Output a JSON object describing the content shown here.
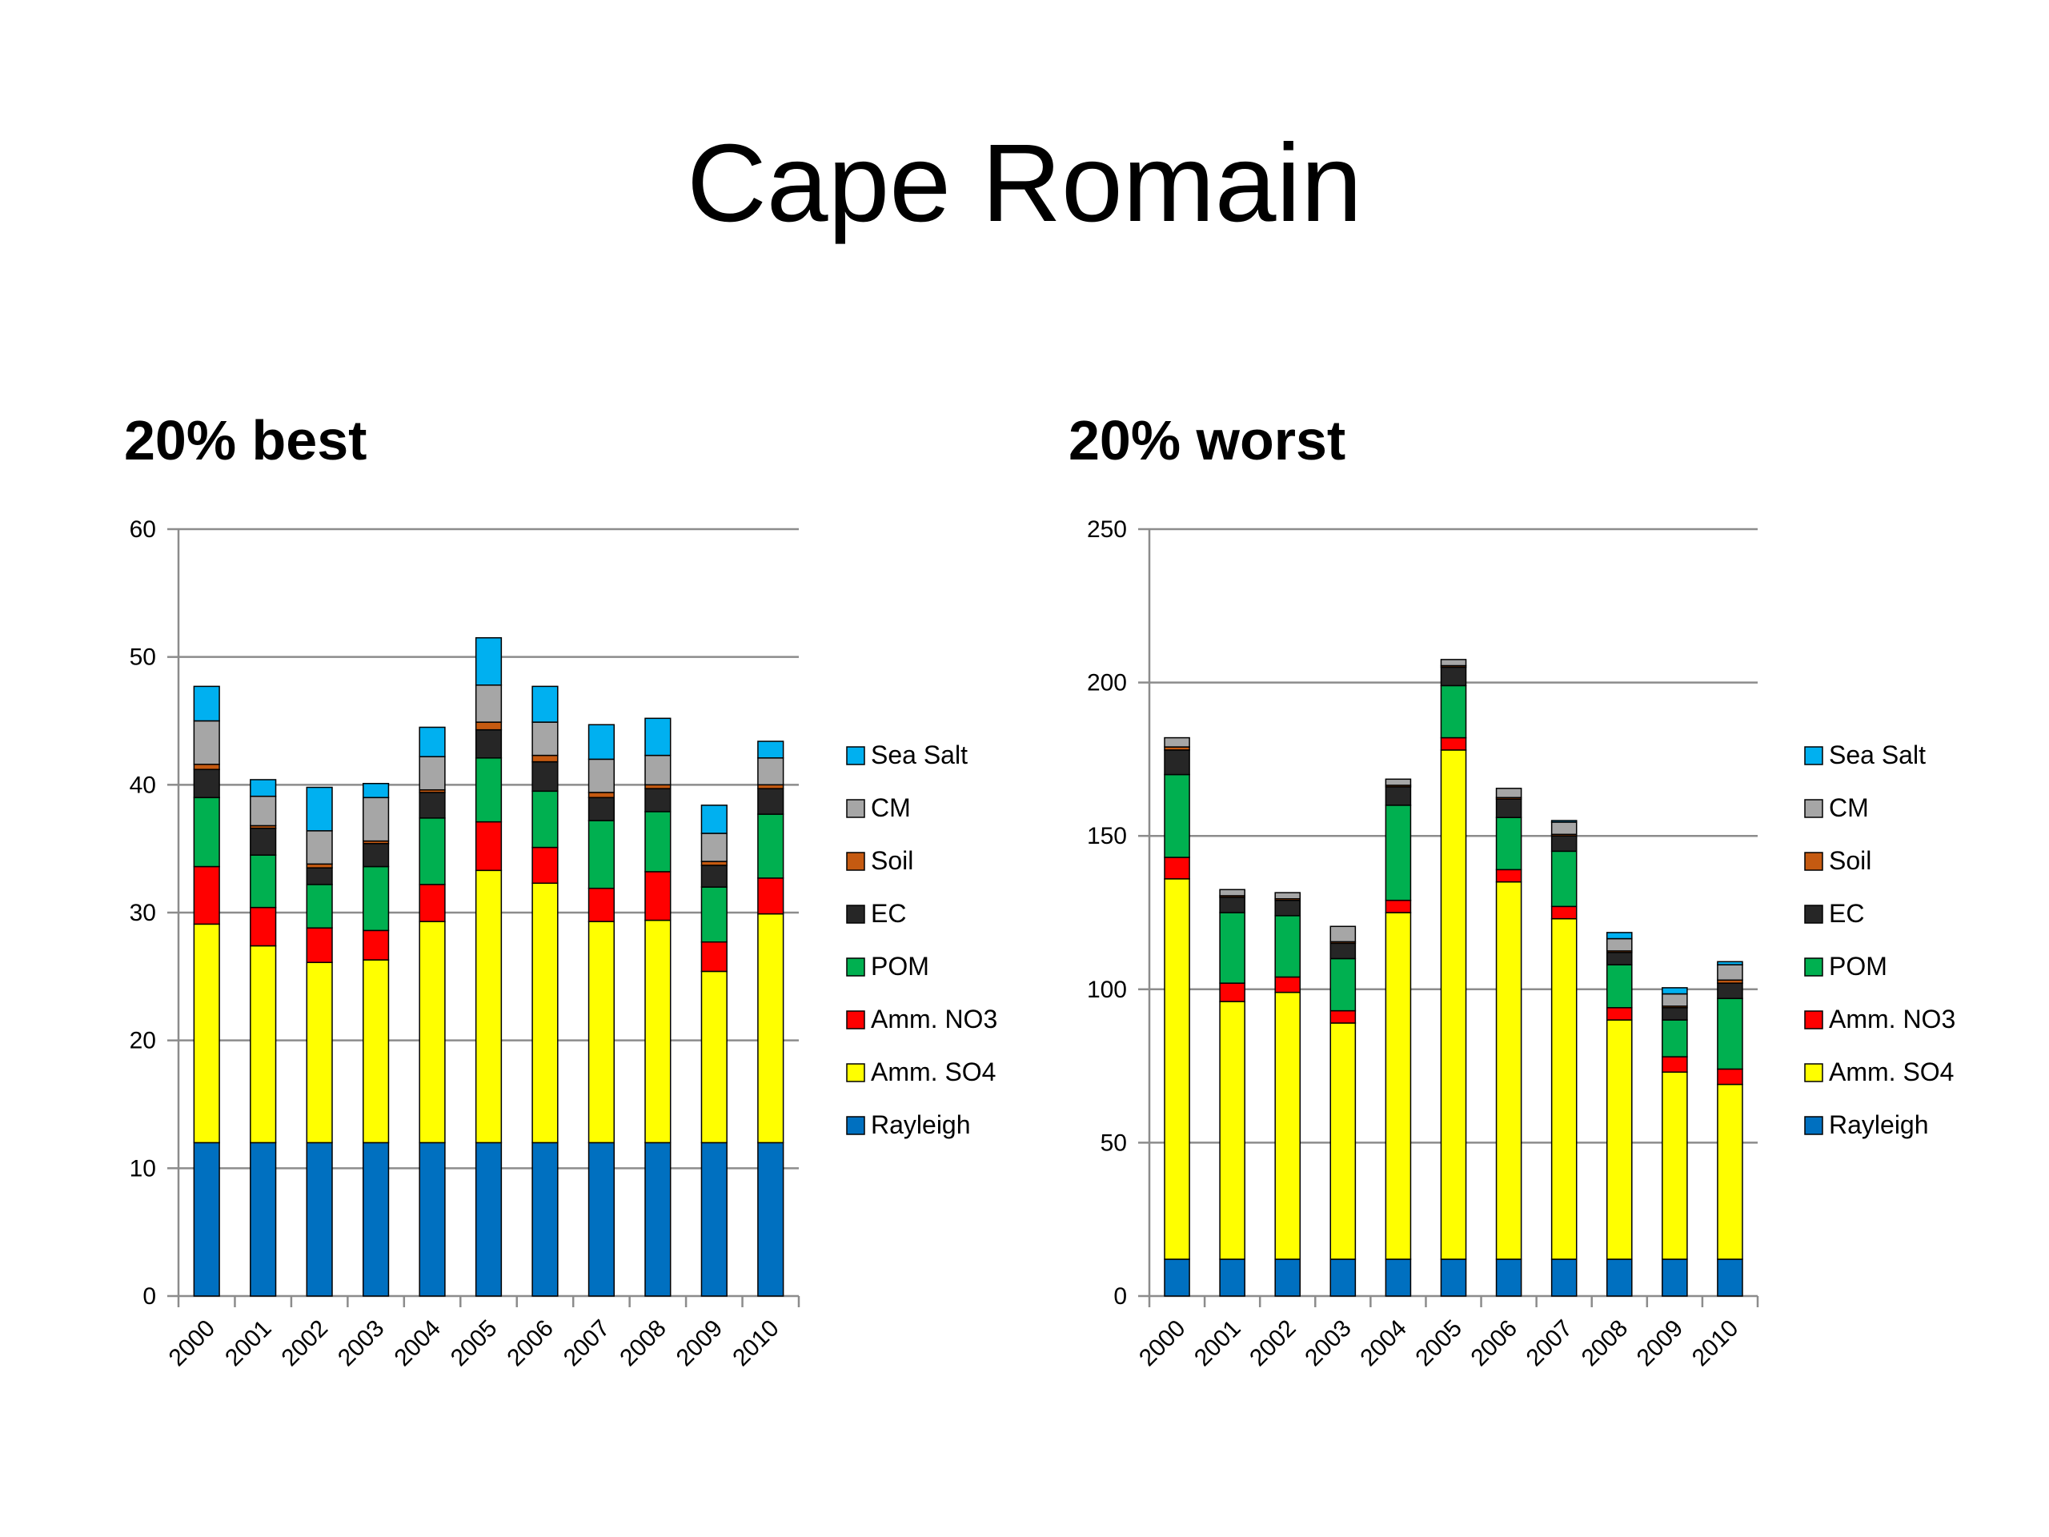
{
  "slide": {
    "title": "Cape Romain"
  },
  "colors": {
    "Rayleigh": "#0070c0",
    "Amm. SO4": "#ffff00",
    "Amm. NO3": "#ff0000",
    "POM": "#00b050",
    "EC": "#262626",
    "Soil": "#c55a11",
    "CM": "#a6a6a6",
    "Sea Salt": "#00b0f0"
  },
  "chart_data": [
    {
      "type": "bar",
      "stacked": true,
      "title": "20% best",
      "categories": [
        "2000",
        "2001",
        "2002",
        "2003",
        "2004",
        "2005",
        "2006",
        "2007",
        "2008",
        "2009",
        "2010"
      ],
      "ylim": [
        0,
        60
      ],
      "yticks": [
        0,
        10,
        20,
        30,
        40,
        50,
        60
      ],
      "grid": true,
      "legend_position": "right",
      "legend": [
        "Sea Salt",
        "CM",
        "Soil",
        "EC",
        "POM",
        "Amm. NO3",
        "Amm. SO4",
        "Rayleigh"
      ],
      "series": [
        {
          "name": "Rayleigh",
          "values": [
            12,
            12,
            12,
            12,
            12,
            12,
            12,
            12,
            12,
            12,
            12
          ]
        },
        {
          "name": "Amm. SO4",
          "values": [
            17.1,
            15.4,
            14.1,
            14.3,
            17.3,
            21.3,
            20.3,
            17.3,
            17.4,
            13.4,
            17.9
          ]
        },
        {
          "name": "Amm. NO3",
          "values": [
            4.5,
            3.0,
            2.7,
            2.3,
            2.9,
            3.8,
            2.8,
            2.6,
            3.8,
            2.3,
            2.8
          ]
        },
        {
          "name": "POM",
          "values": [
            5.4,
            4.1,
            3.4,
            5.0,
            5.2,
            5.0,
            4.4,
            5.3,
            4.7,
            4.3,
            5.0
          ]
        },
        {
          "name": "EC",
          "values": [
            2.2,
            2.1,
            1.3,
            1.8,
            2.0,
            2.2,
            2.3,
            1.8,
            1.8,
            1.7,
            2.0
          ]
        },
        {
          "name": "Soil",
          "values": [
            0.4,
            0.2,
            0.3,
            0.2,
            0.2,
            0.6,
            0.5,
            0.4,
            0.3,
            0.3,
            0.3
          ]
        },
        {
          "name": "CM",
          "values": [
            3.4,
            2.3,
            2.6,
            3.4,
            2.6,
            2.9,
            2.6,
            2.6,
            2.3,
            2.2,
            2.1
          ]
        },
        {
          "name": "Sea Salt",
          "values": [
            2.7,
            1.3,
            3.4,
            1.1,
            2.3,
            3.7,
            2.8,
            2.7,
            2.9,
            2.2,
            1.3
          ]
        }
      ]
    },
    {
      "type": "bar",
      "stacked": true,
      "title": "20% worst",
      "categories": [
        "2000",
        "2001",
        "2002",
        "2003",
        "2004",
        "2005",
        "2006",
        "2007",
        "2008",
        "2009",
        "2010"
      ],
      "ylim": [
        0,
        250
      ],
      "yticks": [
        0,
        50,
        100,
        150,
        200,
        250
      ],
      "grid": true,
      "legend_position": "right",
      "legend": [
        "Sea Salt",
        "CM",
        "Soil",
        "EC",
        "POM",
        "Amm. NO3",
        "Amm. SO4",
        "Rayleigh"
      ],
      "series": [
        {
          "name": "Rayleigh",
          "values": [
            12,
            12,
            12,
            12,
            12,
            12,
            12,
            12,
            12,
            12,
            12
          ]
        },
        {
          "name": "Amm. SO4",
          "values": [
            124,
            84,
            87,
            77,
            113,
            166,
            123,
            111,
            78,
            61,
            57
          ]
        },
        {
          "name": "Amm. NO3",
          "values": [
            7,
            6,
            5,
            4,
            4,
            4,
            4,
            4,
            4,
            5,
            5
          ]
        },
        {
          "name": "POM",
          "values": [
            27,
            23,
            20,
            17,
            31,
            17,
            17,
            18,
            14,
            12,
            23
          ]
        },
        {
          "name": "EC",
          "values": [
            8,
            5,
            5,
            5,
            6,
            6,
            6,
            5,
            4,
            4,
            5
          ]
        },
        {
          "name": "Soil",
          "values": [
            1,
            0.5,
            0.5,
            0.5,
            0.5,
            0.5,
            0.5,
            0.5,
            0.5,
            0.5,
            1
          ]
        },
        {
          "name": "CM",
          "values": [
            3,
            2,
            2,
            5,
            2,
            2,
            3,
            4,
            4,
            4,
            5
          ]
        },
        {
          "name": "Sea Salt",
          "values": [
            0,
            0,
            0,
            0,
            0,
            0,
            0,
            0.5,
            2,
            2,
            1
          ]
        }
      ]
    }
  ]
}
